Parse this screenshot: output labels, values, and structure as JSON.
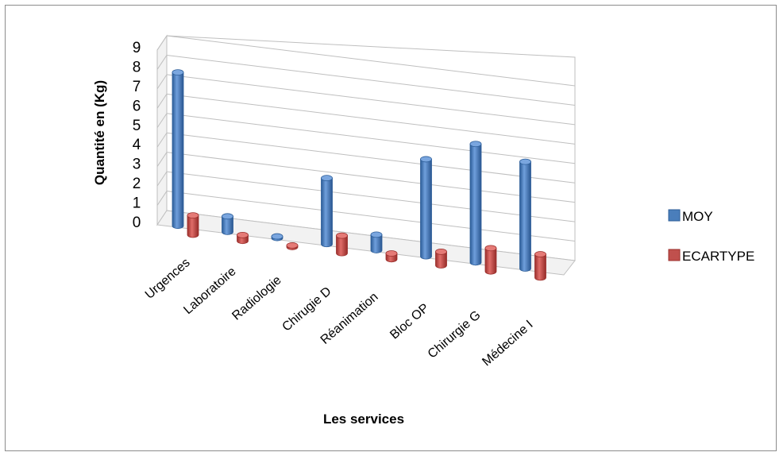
{
  "chart_data": {
    "type": "bar",
    "style": "3d-cylinder",
    "categories": [
      "Urgences",
      "Laboratoire",
      "Radiologie",
      "Chirugie D",
      "Réanimation",
      "Bloc OP",
      "Chirurgie G",
      "Médecine I"
    ],
    "series": [
      {
        "name": "MOY",
        "color": "#4a7ebb",
        "values": [
          7.9,
          0.8,
          0.05,
          3.4,
          0.8,
          5.0,
          6.1,
          5.5
        ]
      },
      {
        "name": "ECARTYPE",
        "color": "#c0504d",
        "values": [
          1.0,
          0.3,
          0.05,
          0.9,
          0.3,
          0.7,
          1.2,
          1.2
        ]
      }
    ],
    "ylabel": "Quantité en (Kg)",
    "xlabel": "Les services",
    "ylim": [
      0,
      9
    ],
    "yticks": [
      0,
      1,
      2,
      3,
      4,
      5,
      6,
      7,
      8,
      9
    ],
    "grid": true,
    "legend_position": "right"
  }
}
